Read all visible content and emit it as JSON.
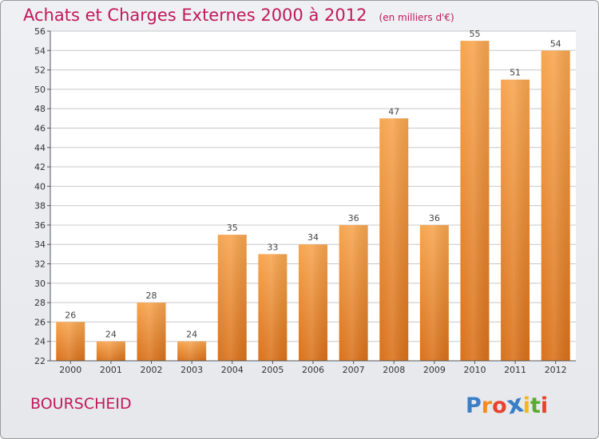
{
  "title": "Achats et Charges Externes 2000 à 2012",
  "unit": "(en milliers d'€)",
  "commune": "BOURSCHEID",
  "logo": {
    "text": "Proxiti",
    "letters": [
      {
        "ch": "P",
        "color": "#3a7fc6"
      },
      {
        "ch": "r",
        "color": "#f28c1e"
      },
      {
        "ch": "o",
        "color": "#e8412c"
      },
      {
        "ch": "x",
        "color": "#3a7fc6"
      },
      {
        "ch": "i",
        "color": "#f2b61e"
      },
      {
        "ch": "t",
        "color": "#5aaa2c"
      },
      {
        "ch": "i",
        "color": "#e8412c"
      }
    ]
  },
  "colors": {
    "title": "#c2185b",
    "bar_top": "#f7a54f",
    "bar_bottom": "#d9711a",
    "grid": "#c8c8c8",
    "axis": "#555555"
  },
  "chart_data": {
    "type": "bar",
    "title": "Achats et Charges Externes 2000 à 2012",
    "subtitle": "(en milliers d'€)",
    "categories": [
      "2000",
      "2001",
      "2002",
      "2003",
      "2004",
      "2005",
      "2006",
      "2007",
      "2008",
      "2009",
      "2010",
      "2011",
      "2012"
    ],
    "values": [
      26,
      24,
      28,
      24,
      35,
      33,
      34,
      36,
      47,
      36,
      55,
      51,
      54
    ],
    "ylim": [
      22,
      56
    ],
    "yticks": [
      22,
      24,
      26,
      28,
      30,
      32,
      34,
      36,
      38,
      40,
      42,
      44,
      46,
      48,
      50,
      52,
      54,
      56
    ],
    "grid": true,
    "xlabel": "",
    "ylabel": ""
  }
}
